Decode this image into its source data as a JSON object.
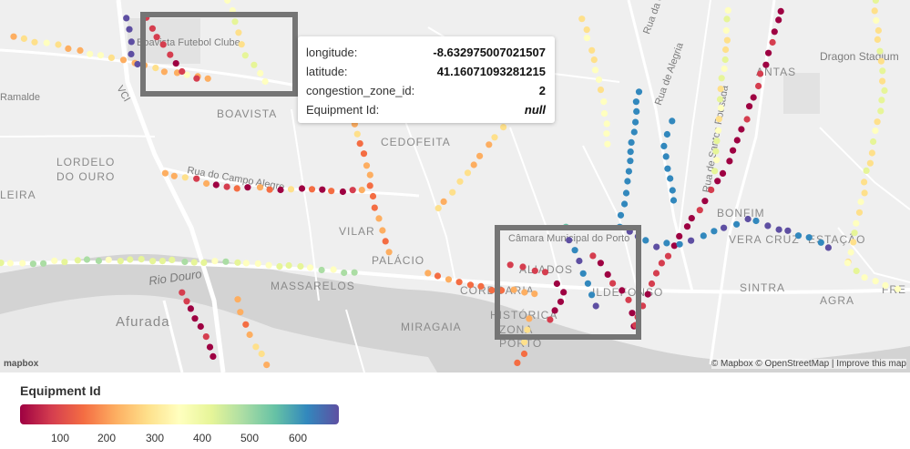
{
  "map": {
    "labels": {
      "boavista_futebol": "Boavista Futebol Clube",
      "boavista": "BOAVISTA",
      "cedofeita": "CEDOFEITA",
      "lordelo": "LORDELO\nDO OURO",
      "lordelo_1": "LORDELO",
      "lordelo_2": "DO OURO",
      "ramalde": "Ramalde",
      "rua_alegria": "Rua de Alegria",
      "rua_costa": "Rua da Co",
      "rua_santos_pousada": "Rua de Santos Pousada",
      "rua_do_campo": "Rua do Campo Alegre",
      "vci": "VCI",
      "rio_douro": "Rio Douro",
      "massarelos": "MASSARELOS",
      "afurada": "Afurada",
      "vilar": "VILAR",
      "palacio": "PALÁCIO",
      "cordoaria": "CORDOARIA",
      "aliados": "ALIADOS",
      "camara": "Câmara Municipal do Porto",
      "historica": "HISTÓRICA",
      "zona": "ZONA",
      "porto": "PORTO",
      "miragaia": "MIRAGAIA",
      "ildefonso": "ILDEFONSO",
      "bonfim": "BONFIM",
      "vera_cruz": "VERA CRUZ",
      "estacao": "ESTAÇÃO",
      "sintra": "SINTRA",
      "agra": "AGRA",
      "fre": "FRE",
      "antas": "ANTAS",
      "dragon": "Dragon Stadium",
      "leira": "LEIRA"
    },
    "attribution": "© Mapbox © OpenStreetMap | Improve this map",
    "logo": "mapbox"
  },
  "tooltip": {
    "rows": [
      {
        "key": "longitude:",
        "value": "-8.632975007021507"
      },
      {
        "key": "latitude:",
        "value": "41.16071093281215"
      },
      {
        "key": "congestion_zone_id:",
        "value": "2"
      },
      {
        "key": "Equipment Id:",
        "value": "null"
      }
    ]
  },
  "legend": {
    "title": "Equipment Id",
    "ticks": [
      "100",
      "200",
      "300",
      "400",
      "500",
      "600"
    ],
    "colors": [
      "#9e0142",
      "#d53e4f",
      "#f46d43",
      "#fdae61",
      "#fee08b",
      "#ffffbf",
      "#e6f598",
      "#abdda4",
      "#66c2a5",
      "#3288bd",
      "#5e4fa2"
    ]
  }
}
